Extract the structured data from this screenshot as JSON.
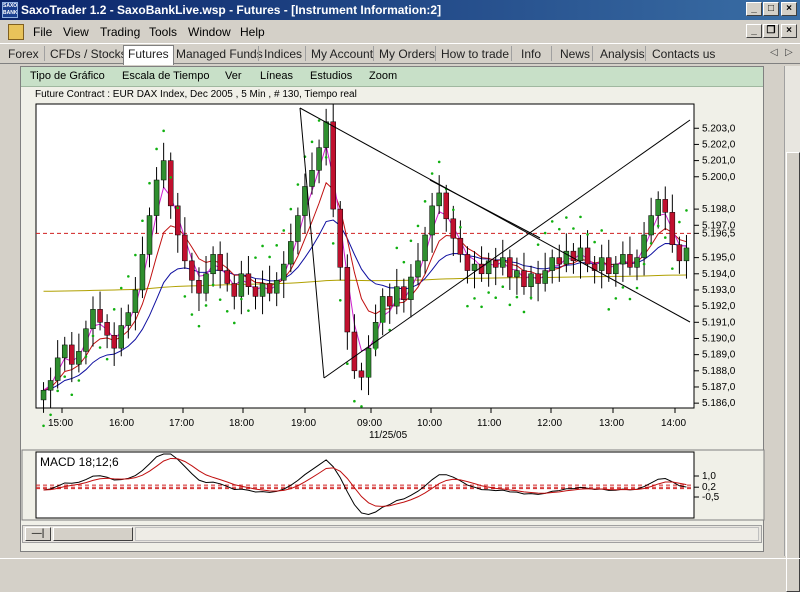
{
  "window": {
    "app_icon_text": "SAXO BANK",
    "title": "SaxoTrader 1.2 - SaxoBankLive.wsp - Futures - [Instrument Information:2]"
  },
  "menu": [
    "File",
    "View",
    "Trading",
    "Tools",
    "Window",
    "Help"
  ],
  "nav_tabs": [
    "Forex",
    "CFDs / Stocks",
    "Futures",
    "Managed Funds",
    "Indices",
    "My Account",
    "My Orders",
    "How to trade",
    "Info",
    "News",
    "Analysis",
    "Contacts us"
  ],
  "active_tab": "Futures",
  "chart_toolbar": [
    "Tipo de Gráfico",
    "Escala de Tiempo",
    "Ver",
    "Líneas",
    "Estudios",
    "Zoom"
  ],
  "chart_header": "Future Contract : EUR DAX Index, Dec 2005 , 5 Min , # 130, Tiempo real",
  "date_label": "11/25/05",
  "macd_label": "MACD 18;12;6",
  "colors": {
    "up_candle": "#2f8f2f",
    "down_candle": "#c0102e",
    "sar_dots": "#10b010",
    "ma_fast": "#d020d0",
    "ma_mid": "#c01010",
    "ma_slow": "#1010a0",
    "ma_long": "#b0a000",
    "hline": "#d02020"
  },
  "chart_data": [
    {
      "type": "candlestick",
      "x_ticks": [
        "15:00",
        "16:00",
        "17:00",
        "18:00",
        "19:00",
        "09:00",
        "10:00",
        "11:00",
        "12:00",
        "13:00",
        "14:00"
      ],
      "y_ticks": [
        "5.203,0",
        "5.202,0",
        "5.201,0",
        "5.200,0",
        "5.198,0",
        "5.197,0",
        "5.196,5",
        "5.195,0",
        "5.194,0",
        "5.193,0",
        "5.192,0",
        "5.191,0",
        "5.190,0",
        "5.189,0",
        "5.188,0",
        "5.187,0",
        "5.186,0"
      ],
      "ylim": [
        5185.7,
        5204.5
      ],
      "reference_line": 5196.5,
      "series": [
        {
          "values": [
            5186.8,
            5187.4,
            5188.8,
            5189.6,
            5188.4,
            5189.2,
            5190.6,
            5191.8,
            5191.0,
            5190.2,
            5189.4,
            5190.8,
            5191.6,
            5193.0,
            5195.2,
            5197.6,
            5199.8,
            5201.0,
            5198.2,
            5196.4,
            5194.8,
            5193.6,
            5192.8,
            5194.0,
            5195.2,
            5194.2,
            5193.4,
            5192.6,
            5194.0,
            5193.2,
            5192.6,
            5193.4,
            5192.8,
            5193.6,
            5194.6,
            5196.0,
            5197.6,
            5199.4,
            5200.4,
            5201.8,
            5203.4,
            5198.0,
            5194.4,
            5190.4,
            5188.0,
            5187.6,
            5189.4,
            5191.0,
            5192.6,
            5192.0,
            5193.2,
            5192.4,
            5193.8,
            5194.8,
            5196.4,
            5198.2,
            5199.0,
            5197.4,
            5196.2,
            5195.2,
            5194.2,
            5194.6,
            5194.0,
            5194.8,
            5194.4,
            5195.0,
            5193.8,
            5194.2,
            5193.2,
            5194.0,
            5193.4,
            5194.2,
            5195.0,
            5194.6,
            5195.4,
            5194.8,
            5195.6,
            5194.6,
            5194.2,
            5195.0,
            5194.0,
            5194.6,
            5195.2,
            5194.4,
            5195.0,
            5196.4,
            5197.6,
            5198.6,
            5197.8,
            5195.8,
            5194.8,
            5195.6
          ]
        }
      ]
    },
    {
      "type": "line",
      "title": "MACD 18;12;6",
      "y_ticks": [
        "1,0",
        "0,2",
        "-0,5"
      ],
      "reference_lines": [
        0.2,
        0.1,
        0.35
      ]
    }
  ]
}
